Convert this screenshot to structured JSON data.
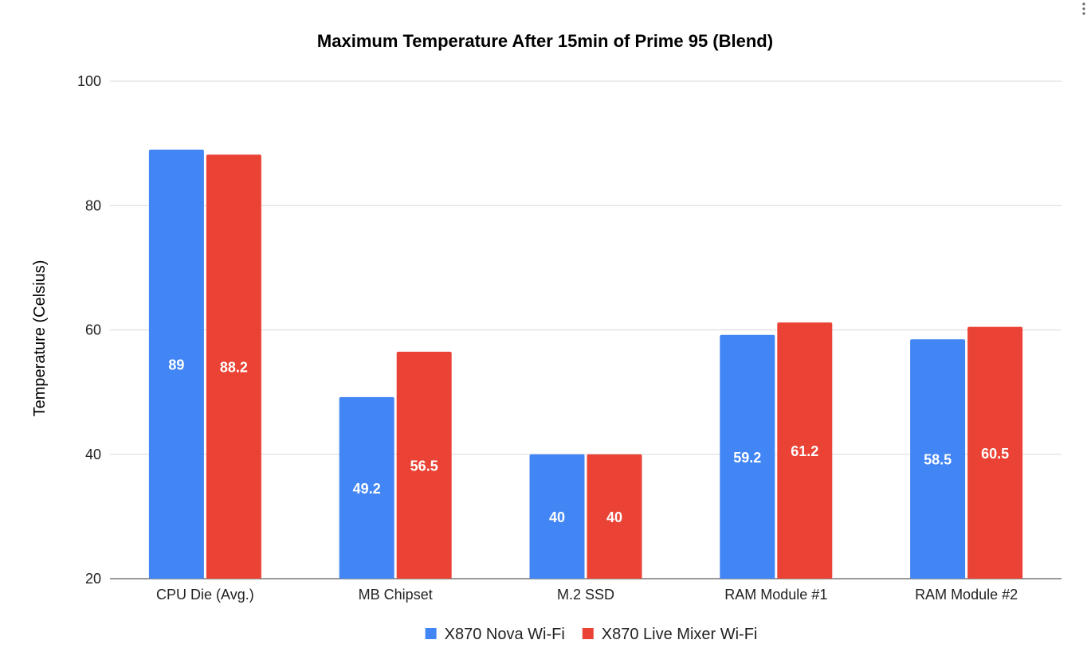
{
  "chart_data": {
    "type": "bar",
    "title": "Maximum Temperature After 15min of Prime 95 (Blend)",
    "xlabel": "",
    "ylabel": "Temperature (Celsius)",
    "ylim": [
      20,
      100
    ],
    "yticks": [
      20,
      40,
      60,
      80,
      100
    ],
    "grid": true,
    "legend": "bottom",
    "categories": [
      "CPU Die (Avg.)",
      "MB Chipset",
      "M.2 SSD",
      "RAM Module #1",
      "RAM Module #2"
    ],
    "series": [
      {
        "name": "X870 Nova Wi-Fi",
        "color": "#4285F4",
        "values": [
          89,
          49.2,
          40,
          59.2,
          58.5
        ],
        "labels": [
          "89",
          "49.2",
          "40",
          "59.2",
          "58.5"
        ]
      },
      {
        "name": "X870 Live Mixer Wi-Fi",
        "color": "#EA4335",
        "values": [
          88.2,
          56.5,
          40,
          61.2,
          60.5
        ],
        "labels": [
          "88.2",
          "56.5",
          "40",
          "61.2",
          "60.5"
        ]
      }
    ]
  },
  "menu_icon": "more-vertical-icon"
}
